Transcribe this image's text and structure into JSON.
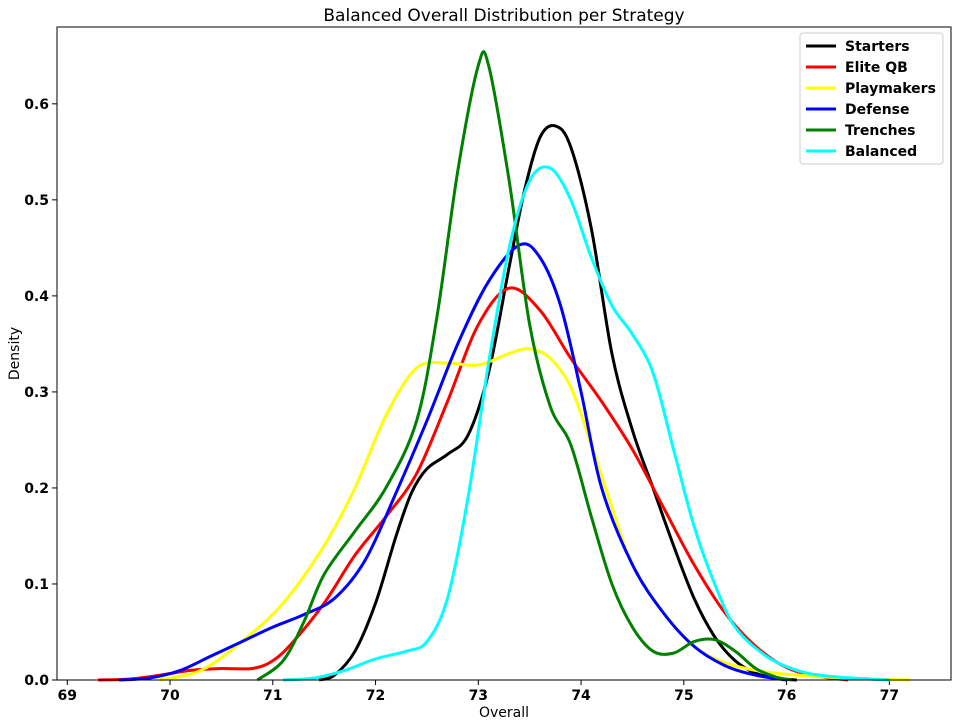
{
  "chart_data": {
    "type": "line",
    "title": "Balanced Overall Distribution per Strategy",
    "xlabel": "Overall",
    "ylabel": "Density",
    "xlim": [
      68.9,
      77.6
    ],
    "ylim": [
      0,
      0.68
    ],
    "xticks": [
      "69",
      "70",
      "71",
      "72",
      "73",
      "74",
      "75",
      "76",
      "77"
    ],
    "yticks": [
      "0.0",
      "0.1",
      "0.2",
      "0.3",
      "0.4",
      "0.5",
      "0.6"
    ],
    "grid": false,
    "legend_position": "top-right",
    "series": [
      {
        "name": "Starters",
        "color": "#000000",
        "points": [
          [
            71.45,
            0.0
          ],
          [
            71.6,
            0.005
          ],
          [
            71.8,
            0.03
          ],
          [
            72.0,
            0.08
          ],
          [
            72.2,
            0.15
          ],
          [
            72.35,
            0.195
          ],
          [
            72.5,
            0.22
          ],
          [
            72.7,
            0.235
          ],
          [
            72.9,
            0.255
          ],
          [
            73.1,
            0.32
          ],
          [
            73.3,
            0.43
          ],
          [
            73.45,
            0.51
          ],
          [
            73.6,
            0.565
          ],
          [
            73.75,
            0.577
          ],
          [
            73.9,
            0.555
          ],
          [
            74.1,
            0.47
          ],
          [
            74.3,
            0.34
          ],
          [
            74.5,
            0.26
          ],
          [
            74.7,
            0.2
          ],
          [
            74.9,
            0.14
          ],
          [
            75.1,
            0.085
          ],
          [
            75.3,
            0.045
          ],
          [
            75.5,
            0.02
          ],
          [
            75.7,
            0.007
          ],
          [
            75.9,
            0.002
          ],
          [
            76.1,
            0.0
          ]
        ]
      },
      {
        "name": "Elite QB",
        "color": "#ff0000",
        "points": [
          [
            69.3,
            0.0
          ],
          [
            69.6,
            0.001
          ],
          [
            69.9,
            0.005
          ],
          [
            70.2,
            0.01
          ],
          [
            70.5,
            0.012
          ],
          [
            70.8,
            0.012
          ],
          [
            71.0,
            0.02
          ],
          [
            71.2,
            0.04
          ],
          [
            71.5,
            0.08
          ],
          [
            71.8,
            0.13
          ],
          [
            72.1,
            0.17
          ],
          [
            72.4,
            0.215
          ],
          [
            72.7,
            0.29
          ],
          [
            73.0,
            0.37
          ],
          [
            73.3,
            0.408
          ],
          [
            73.6,
            0.385
          ],
          [
            73.9,
            0.335
          ],
          [
            74.2,
            0.29
          ],
          [
            74.5,
            0.24
          ],
          [
            74.8,
            0.18
          ],
          [
            75.1,
            0.12
          ],
          [
            75.4,
            0.07
          ],
          [
            75.7,
            0.035
          ],
          [
            76.0,
            0.013
          ],
          [
            76.3,
            0.004
          ],
          [
            76.6,
            0.0
          ]
        ]
      },
      {
        "name": "Playmakers",
        "color": "#ffff00",
        "points": [
          [
            69.9,
            0.0
          ],
          [
            70.3,
            0.01
          ],
          [
            70.7,
            0.04
          ],
          [
            71.1,
            0.08
          ],
          [
            71.5,
            0.14
          ],
          [
            71.8,
            0.2
          ],
          [
            72.1,
            0.275
          ],
          [
            72.4,
            0.325
          ],
          [
            72.7,
            0.33
          ],
          [
            73.0,
            0.328
          ],
          [
            73.3,
            0.34
          ],
          [
            73.5,
            0.345
          ],
          [
            73.7,
            0.335
          ],
          [
            73.9,
            0.305
          ],
          [
            74.1,
            0.245
          ],
          [
            74.3,
            0.18
          ],
          [
            74.5,
            0.12
          ],
          [
            74.8,
            0.07
          ],
          [
            75.1,
            0.035
          ],
          [
            75.4,
            0.018
          ],
          [
            75.7,
            0.01
          ],
          [
            76.0,
            0.006
          ],
          [
            76.4,
            0.003
          ],
          [
            76.8,
            0.001
          ],
          [
            77.2,
            0.0
          ]
        ]
      },
      {
        "name": "Defense",
        "color": "#0000ff",
        "points": [
          [
            69.5,
            0.0
          ],
          [
            69.8,
            0.002
          ],
          [
            70.1,
            0.01
          ],
          [
            70.4,
            0.025
          ],
          [
            70.7,
            0.04
          ],
          [
            71.0,
            0.055
          ],
          [
            71.3,
            0.068
          ],
          [
            71.6,
            0.085
          ],
          [
            71.9,
            0.125
          ],
          [
            72.2,
            0.195
          ],
          [
            72.5,
            0.27
          ],
          [
            72.8,
            0.35
          ],
          [
            73.1,
            0.415
          ],
          [
            73.4,
            0.453
          ],
          [
            73.6,
            0.44
          ],
          [
            73.8,
            0.39
          ],
          [
            74.0,
            0.3
          ],
          [
            74.2,
            0.2
          ],
          [
            74.5,
            0.12
          ],
          [
            74.8,
            0.07
          ],
          [
            75.1,
            0.035
          ],
          [
            75.4,
            0.015
          ],
          [
            75.7,
            0.005
          ],
          [
            76.0,
            0.0
          ]
        ]
      },
      {
        "name": "Trenches",
        "color": "#008000",
        "points": [
          [
            70.85,
            0.0
          ],
          [
            71.1,
            0.02
          ],
          [
            71.3,
            0.06
          ],
          [
            71.5,
            0.11
          ],
          [
            71.8,
            0.155
          ],
          [
            72.1,
            0.2
          ],
          [
            72.4,
            0.27
          ],
          [
            72.6,
            0.38
          ],
          [
            72.8,
            0.53
          ],
          [
            73.0,
            0.64
          ],
          [
            73.1,
            0.64
          ],
          [
            73.3,
            0.52
          ],
          [
            73.5,
            0.37
          ],
          [
            73.7,
            0.285
          ],
          [
            73.9,
            0.245
          ],
          [
            74.1,
            0.17
          ],
          [
            74.3,
            0.1
          ],
          [
            74.5,
            0.055
          ],
          [
            74.7,
            0.03
          ],
          [
            74.9,
            0.028
          ],
          [
            75.1,
            0.04
          ],
          [
            75.3,
            0.042
          ],
          [
            75.5,
            0.03
          ],
          [
            75.7,
            0.012
          ],
          [
            75.9,
            0.003
          ],
          [
            76.05,
            0.0
          ]
        ]
      },
      {
        "name": "Balanced",
        "color": "#00ffff",
        "points": [
          [
            71.1,
            0.0
          ],
          [
            71.4,
            0.002
          ],
          [
            71.7,
            0.01
          ],
          [
            72.0,
            0.022
          ],
          [
            72.3,
            0.03
          ],
          [
            72.5,
            0.04
          ],
          [
            72.7,
            0.085
          ],
          [
            72.9,
            0.19
          ],
          [
            73.1,
            0.33
          ],
          [
            73.3,
            0.45
          ],
          [
            73.5,
            0.52
          ],
          [
            73.7,
            0.533
          ],
          [
            73.9,
            0.5
          ],
          [
            74.1,
            0.44
          ],
          [
            74.3,
            0.39
          ],
          [
            74.5,
            0.36
          ],
          [
            74.7,
            0.32
          ],
          [
            74.9,
            0.24
          ],
          [
            75.1,
            0.16
          ],
          [
            75.3,
            0.1
          ],
          [
            75.5,
            0.055
          ],
          [
            75.8,
            0.025
          ],
          [
            76.1,
            0.01
          ],
          [
            76.4,
            0.004
          ],
          [
            76.8,
            0.001
          ],
          [
            77.0,
            0.0
          ]
        ]
      }
    ]
  }
}
